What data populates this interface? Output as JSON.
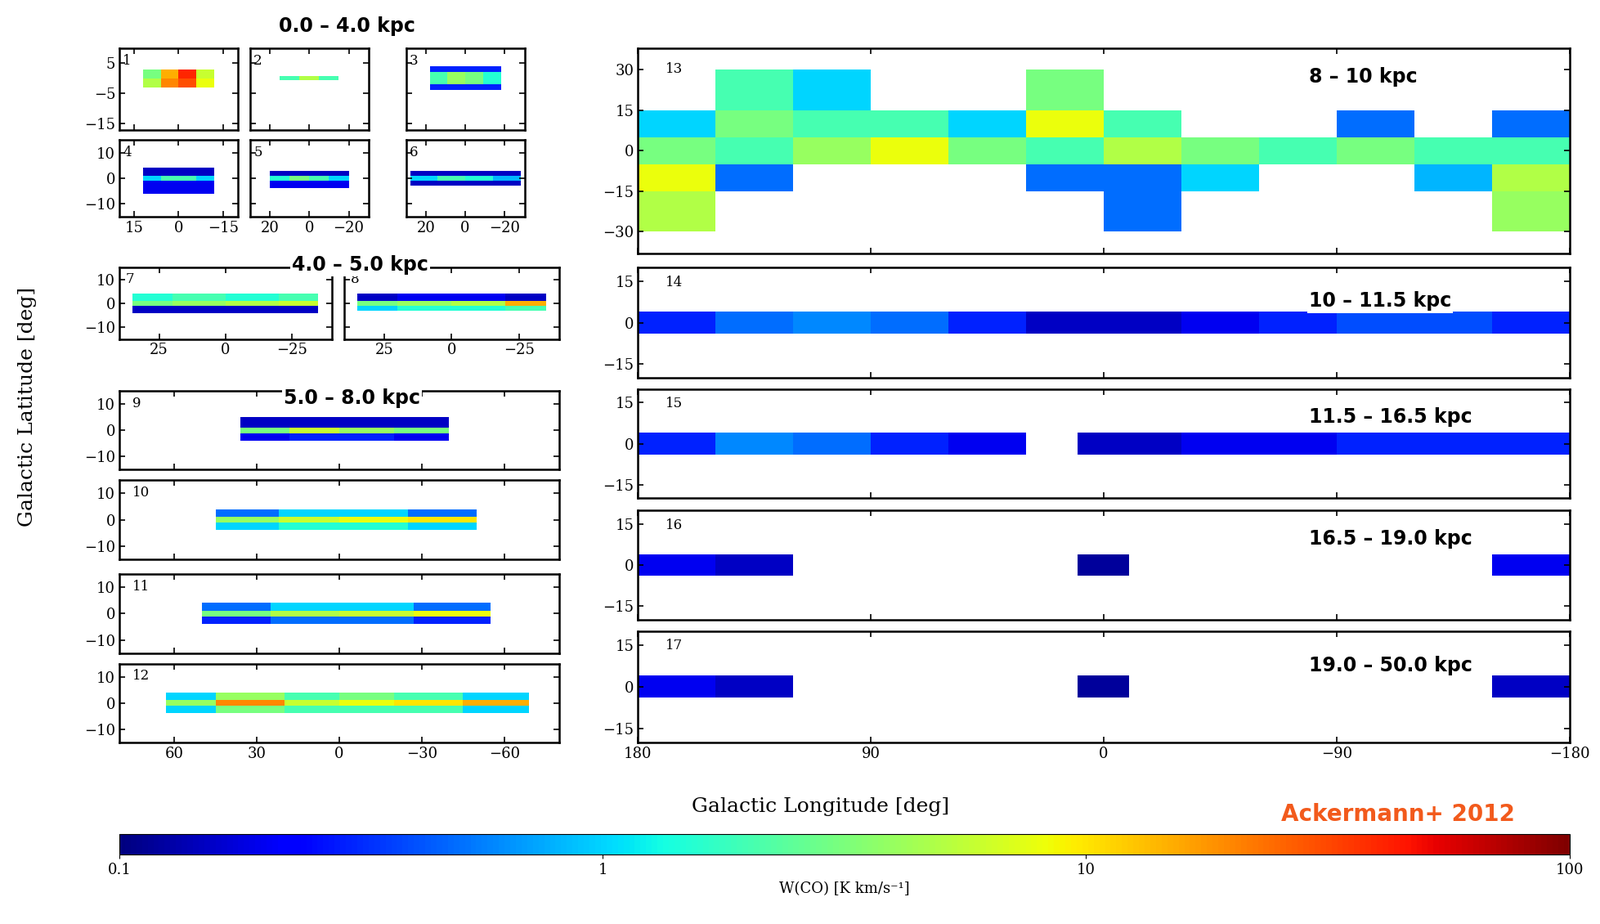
{
  "chart_data": [
    {
      "type": "heatmap",
      "label": "1",
      "xlim": [
        20,
        -20
      ],
      "ylim": [
        -17,
        10
      ],
      "xticks": [
        15,
        0,
        {
          "value": -15,
          "label": "−15"
        }
      ],
      "yticks": [
        5,
        {
          "value": -5,
          "label": "−5"
        },
        {
          "value": -15,
          "label": "−15"
        }
      ],
      "tick_labels": "y",
      "lon_edges": [
        12,
        6,
        0,
        -6,
        -12
      ],
      "lat_edges": [
        -3,
        0,
        3
      ],
      "cells": [
        [
          5,
          20,
          30,
          8
        ],
        [
          3,
          15,
          40,
          6
        ]
      ]
    },
    {
      "type": "heatmap",
      "label": "2",
      "xlim": [
        30,
        -30
      ],
      "ylim": [
        -17,
        10
      ],
      "xticks": [
        20,
        0,
        {
          "value": -20,
          "label": "−20"
        }
      ],
      "yticks": [
        5,
        {
          "value": -5,
          "label": "−5"
        },
        {
          "value": -15,
          "label": "−15"
        }
      ],
      "tick_labels": false,
      "lon_edges": [
        15,
        5,
        -5,
        -15
      ],
      "lat_edges": [
        -0.6,
        0.6
      ],
      "cells": [
        [
          2,
          5,
          2
        ]
      ]
    },
    {
      "type": "heatmap",
      "label": "3",
      "xlim": [
        30,
        -30
      ],
      "ylim": [
        -17,
        10
      ],
      "xticks": [
        20,
        0,
        {
          "value": -20,
          "label": "−20"
        }
      ],
      "yticks": [
        5,
        {
          "value": -5,
          "label": "−5"
        },
        {
          "value": -15,
          "label": "−15"
        }
      ],
      "tick_labels": false,
      "lon_edges": [
        18,
        9,
        0,
        -9,
        -18
      ],
      "lat_edges": [
        -4,
        -2,
        2,
        4
      ],
      "cells": [
        [
          0.3,
          0.3,
          0.3,
          0.3
        ],
        [
          2,
          4,
          3,
          1.5
        ],
        [
          0.3,
          0.3,
          0.3,
          0.3
        ]
      ]
    },
    {
      "type": "heatmap",
      "label": "4",
      "xlim": [
        20,
        -20
      ],
      "ylim": [
        -15,
        15
      ],
      "xticks": [
        15,
        0,
        {
          "value": -15,
          "label": "−15"
        }
      ],
      "yticks": [
        10,
        0,
        {
          "value": -10,
          "label": "−10"
        }
      ],
      "lon_edges": [
        12,
        6,
        0,
        -6,
        -12
      ],
      "lat_edges": [
        -6,
        -1,
        1,
        4
      ],
      "cells": [
        [
          0.2,
          0.2,
          0.2,
          0.2
        ],
        [
          1,
          2,
          2,
          1
        ],
        [
          0.15,
          0.15,
          0.15,
          0.15
        ]
      ]
    },
    {
      "type": "heatmap",
      "label": "5",
      "xlim": [
        30,
        -30
      ],
      "ylim": [
        -15,
        15
      ],
      "xticks": [
        20,
        0,
        {
          "value": -20,
          "label": "−20"
        }
      ],
      "yticks": [
        10,
        0,
        {
          "value": -10,
          "label": "−10"
        }
      ],
      "tick_labels": "x",
      "lon_edges": [
        20,
        10,
        0,
        -10,
        -20
      ],
      "lat_edges": [
        -4,
        -1,
        1,
        3
      ],
      "cells": [
        [
          0.2,
          0.2,
          0.2,
          0.2
        ],
        [
          1.5,
          3,
          2,
          1
        ],
        [
          0.15,
          0.15,
          0.15,
          0.15
        ]
      ]
    },
    {
      "type": "heatmap",
      "label": "6",
      "xlim": [
        30,
        -30
      ],
      "ylim": [
        -15,
        15
      ],
      "xticks": [
        20,
        0,
        {
          "value": -20,
          "label": "−20"
        }
      ],
      "yticks": [
        10,
        0,
        {
          "value": -10,
          "label": "−10"
        }
      ],
      "tick_labels": "x",
      "lon_edges": [
        28,
        14,
        0,
        -14,
        -28
      ],
      "lat_edges": [
        -3,
        -1,
        1,
        3
      ],
      "cells": [
        [
          0.15,
          0.15,
          0.15,
          0.15
        ],
        [
          1,
          2,
          1.5,
          0.8
        ],
        [
          0.15,
          0.15,
          0.15,
          0.15
        ]
      ]
    },
    {
      "type": "heatmap",
      "label": "7",
      "xlim": [
        40,
        -40
      ],
      "ylim": [
        -15,
        15
      ],
      "xticks": [
        25,
        0,
        {
          "value": -25,
          "label": "−25"
        }
      ],
      "yticks": [
        10,
        0,
        {
          "value": -10,
          "label": "−10"
        }
      ],
      "lon_edges": [
        35,
        20,
        0,
        -20,
        -35
      ],
      "lat_edges": [
        -4,
        -1,
        1,
        4
      ],
      "cells": [
        [
          0.15,
          0.15,
          0.15,
          0.15
        ],
        [
          3,
          4,
          5,
          6
        ],
        [
          1.5,
          2,
          1.5,
          2
        ]
      ]
    },
    {
      "type": "heatmap",
      "label": "8",
      "xlim": [
        40,
        -40
      ],
      "ylim": [
        -15,
        15
      ],
      "xticks": [
        25,
        0,
        {
          "value": -25,
          "label": "−25"
        }
      ],
      "yticks": [
        10,
        0,
        {
          "value": -10,
          "label": "−10"
        }
      ],
      "tick_labels": "x",
      "lon_edges": [
        35,
        20,
        0,
        -20,
        -35
      ],
      "lat_edges": [
        -3,
        -1,
        1,
        4
      ],
      "cells": [
        [
          1,
          1.5,
          1.5,
          2
        ],
        [
          3,
          4,
          5,
          15
        ],
        [
          0.15,
          0.2,
          0.2,
          0.15
        ]
      ]
    },
    {
      "type": "heatmap",
      "label": "9",
      "xlim": [
        80,
        -80
      ],
      "ylim": [
        -15,
        15
      ],
      "xticks": [
        60,
        30,
        0,
        {
          "value": -30,
          "label": "−30"
        },
        {
          "value": -60,
          "label": "−60"
        }
      ],
      "yticks": [
        10,
        0,
        {
          "value": -10,
          "label": "−10"
        }
      ],
      "tick_labels": "y",
      "lon_edges": [
        36,
        18,
        0,
        -20,
        -40
      ],
      "lat_edges": [
        -4,
        -1,
        1,
        5
      ],
      "cells": [
        [
          0.2,
          0.3,
          0.3,
          0.2
        ],
        [
          3,
          6,
          4,
          3
        ],
        [
          0.15,
          0.15,
          0.15,
          0.15
        ]
      ]
    },
    {
      "type": "heatmap",
      "label": "10",
      "xlim": [
        80,
        -80
      ],
      "ylim": [
        -15,
        15
      ],
      "xticks": [
        60,
        30,
        0,
        {
          "value": -30,
          "label": "−30"
        },
        {
          "value": -60,
          "label": "−60"
        }
      ],
      "yticks": [
        10,
        0,
        {
          "value": -10,
          "label": "−10"
        }
      ],
      "tick_labels": "y",
      "lon_edges": [
        45,
        22,
        0,
        -25,
        -50
      ],
      "lat_edges": [
        -4,
        -1,
        1,
        4
      ],
      "cells": [
        [
          1,
          1.5,
          1.5,
          1
        ],
        [
          4,
          6,
          8,
          10
        ],
        [
          0.5,
          1,
          1,
          0.5
        ]
      ]
    },
    {
      "type": "heatmap",
      "label": "11",
      "xlim": [
        80,
        -80
      ],
      "ylim": [
        -15,
        15
      ],
      "xticks": [
        60,
        30,
        0,
        {
          "value": -30,
          "label": "−30"
        },
        {
          "value": -60,
          "label": "−60"
        }
      ],
      "yticks": [
        10,
        0,
        {
          "value": -10,
          "label": "−10"
        }
      ],
      "tick_labels": "y",
      "lon_edges": [
        50,
        25,
        0,
        -27,
        -55
      ],
      "lat_edges": [
        -4,
        -1,
        1,
        4
      ],
      "cells": [
        [
          0.3,
          0.5,
          0.5,
          0.3
        ],
        [
          3,
          5,
          6,
          8
        ],
        [
          0.5,
          1,
          1,
          0.5
        ]
      ]
    },
    {
      "type": "heatmap",
      "label": "12",
      "xlim": [
        80,
        -80
      ],
      "ylim": [
        -15,
        15
      ],
      "xticks": [
        60,
        30,
        0,
        {
          "value": -30,
          "label": "−30"
        },
        {
          "value": -60,
          "label": "−60"
        }
      ],
      "yticks": [
        10,
        0,
        {
          "value": -10,
          "label": "−10"
        }
      ],
      "lon_edges": [
        63,
        45,
        20,
        0,
        -20,
        -45,
        -69
      ],
      "lat_edges": [
        -4,
        -1,
        1,
        4
      ],
      "cells": [
        [
          1,
          3,
          2,
          2,
          2,
          1
        ],
        [
          4,
          20,
          6,
          8,
          10,
          15
        ],
        [
          1,
          4,
          2,
          3,
          2,
          1
        ]
      ]
    },
    {
      "type": "heatmap",
      "label": "13",
      "xlim": [
        180,
        -180
      ],
      "ylim": [
        -38,
        38
      ],
      "xticks": [
        180,
        90,
        0,
        {
          "value": -90,
          "label": "−90"
        },
        {
          "value": -180,
          "label": "−180"
        }
      ],
      "yticks": [
        30,
        15,
        0,
        {
          "value": -15,
          "label": "−15"
        },
        {
          "value": -30,
          "label": "−30"
        }
      ],
      "tick_labels": "y",
      "lon_edges": [
        180,
        150,
        120,
        90,
        60,
        30,
        0,
        -30,
        -60,
        -90,
        -120,
        -150,
        -180
      ],
      "lat_edges": [
        -30,
        -15,
        -5,
        5,
        15,
        30
      ],
      "cells": [
        [
          5,
          null,
          null,
          null,
          null,
          null,
          0.5,
          null,
          null,
          null,
          null,
          4
        ],
        [
          8,
          0.5,
          null,
          null,
          null,
          0.5,
          0.5,
          1,
          null,
          null,
          0.8,
          5
        ],
        [
          3,
          2,
          4,
          8,
          3,
          2,
          5,
          3,
          2,
          3,
          2,
          2
        ],
        [
          1,
          3,
          2,
          2,
          1,
          8,
          2,
          null,
          null,
          0.5,
          null,
          0.5
        ],
        [
          null,
          2,
          1,
          null,
          null,
          3,
          null,
          null,
          null,
          null,
          null,
          null
        ]
      ]
    },
    {
      "type": "heatmap",
      "label": "14",
      "xlim": [
        180,
        -180
      ],
      "ylim": [
        -20,
        20
      ],
      "xticks": [
        180,
        90,
        0,
        {
          "value": -90,
          "label": "−90"
        },
        {
          "value": -180,
          "label": "−180"
        }
      ],
      "yticks": [
        15,
        0,
        {
          "value": -15,
          "label": "−15"
        }
      ],
      "tick_labels": "y",
      "lon_edges": [
        180,
        150,
        120,
        90,
        60,
        30,
        10,
        -10,
        -30,
        -60,
        -90,
        -120,
        -150,
        -180
      ],
      "lat_edges": [
        -4,
        4
      ],
      "cells": [
        [
          0.3,
          0.5,
          0.6,
          0.5,
          0.3,
          0.15,
          0.15,
          0.15,
          0.2,
          0.3,
          0.4,
          0.4,
          0.3
        ]
      ]
    },
    {
      "type": "heatmap",
      "label": "15",
      "xlim": [
        180,
        -180
      ],
      "ylim": [
        -20,
        20
      ],
      "xticks": [
        180,
        90,
        0,
        {
          "value": -90,
          "label": "−90"
        },
        {
          "value": -180,
          "label": "−180"
        }
      ],
      "yticks": [
        15,
        0,
        {
          "value": -15,
          "label": "−15"
        }
      ],
      "tick_labels": "y",
      "lon_edges": [
        180,
        150,
        120,
        90,
        60,
        30,
        10,
        -10,
        -30,
        -60,
        -90,
        -120,
        -150,
        -180
      ],
      "lat_edges": [
        -4,
        4
      ],
      "cells": [
        [
          0.3,
          0.6,
          0.5,
          0.3,
          0.2,
          null,
          0.15,
          0.15,
          0.2,
          0.2,
          0.3,
          0.3,
          0.3
        ]
      ]
    },
    {
      "type": "heatmap",
      "label": "16",
      "xlim": [
        180,
        -180
      ],
      "ylim": [
        -20,
        20
      ],
      "xticks": [
        180,
        90,
        0,
        {
          "value": -90,
          "label": "−90"
        },
        {
          "value": -180,
          "label": "−180"
        }
      ],
      "yticks": [
        15,
        0,
        {
          "value": -15,
          "label": "−15"
        }
      ],
      "tick_labels": "y",
      "lon_edges": [
        180,
        150,
        120,
        90,
        60,
        30,
        10,
        -10,
        -30,
        -60,
        -90,
        -120,
        -150,
        -180
      ],
      "lat_edges": [
        -4,
        4
      ],
      "cells": [
        [
          0.2,
          0.15,
          null,
          null,
          null,
          null,
          0.12,
          null,
          null,
          null,
          null,
          null,
          0.2
        ]
      ]
    },
    {
      "type": "heatmap",
      "label": "17",
      "xlim": [
        180,
        -180
      ],
      "ylim": [
        -20,
        20
      ],
      "xticks": [
        180,
        90,
        0,
        {
          "value": -90,
          "label": "−90"
        },
        {
          "value": -180,
          "label": "−180"
        }
      ],
      "yticks": [
        15,
        0,
        {
          "value": -15,
          "label": "−15"
        }
      ],
      "lon_edges": [
        180,
        150,
        120,
        90,
        60,
        30,
        10,
        -10,
        -30,
        -60,
        -90,
        -120,
        -150,
        -180
      ],
      "lat_edges": [
        -4,
        4
      ],
      "cells": [
        [
          0.2,
          0.15,
          null,
          null,
          null,
          null,
          0.12,
          null,
          null,
          null,
          null,
          null,
          0.15
        ]
      ]
    }
  ],
  "figure": {
    "x_label": "Galactic Longitude [deg]",
    "y_label": "Galactic Latitude [deg]",
    "credit": "Ackermann+ 2012",
    "distance_ranges": [
      "0.0 – 4.0 kpc",
      "4.0 – 5.0 kpc",
      "5.0 – 8.0 kpc",
      "8 – 10 kpc",
      "10 – 11.5 kpc",
      "11.5 – 16.5 kpc",
      "16.5 – 19.0 kpc",
      "19.0 – 50.0 kpc"
    ],
    "colorbar": {
      "label": "W(CO) [K km/s⁻¹]",
      "range": [
        0.1,
        100
      ],
      "ticks": [
        0.1,
        1,
        10,
        100
      ],
      "log": true
    }
  }
}
